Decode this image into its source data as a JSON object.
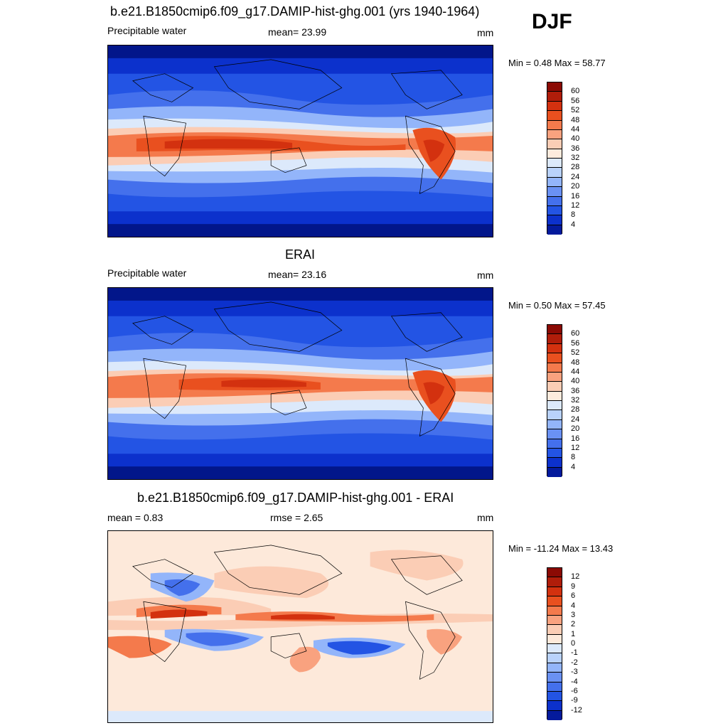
{
  "season": "DJF",
  "panels": [
    {
      "title": "b.e21.B1850cmip6.f09_g17.DAMIP-hist-ghg.001 (yrs 1940-1964)",
      "left_label": "Precipitable water",
      "center_label": "mean=  23.99",
      "units": "mm",
      "minmax": "Min =   0.48 Max =  58.77"
    },
    {
      "title": "ERAI",
      "left_label": "Precipitable water",
      "center_label": "mean=  23.16",
      "units": "mm",
      "minmax": "Min =   0.50 Max =  57.45"
    },
    {
      "title": "b.e21.B1850cmip6.f09_g17.DAMIP-hist-ghg.001 - ERAI",
      "left_label": "mean =   0.83",
      "center_label": "rmse =   2.65",
      "units": "mm",
      "minmax": "Min = -11.24 Max =  13.43"
    }
  ],
  "colorbar_abs": {
    "ticks": [
      "60",
      "56",
      "52",
      "48",
      "44",
      "40",
      "36",
      "32",
      "28",
      "24",
      "20",
      "16",
      "12",
      "8",
      "4"
    ],
    "colors": [
      "#8b0a04",
      "#b01d0a",
      "#d3310f",
      "#e9501f",
      "#f47a4c",
      "#f9a27f",
      "#fbcdb5",
      "#fdebdd",
      "#dce9fb",
      "#b9d2fb",
      "#93b5fa",
      "#6a91f3",
      "#4470ec",
      "#2354e4",
      "#0c31cc",
      "#041a9c"
    ]
  },
  "colorbar_diff": {
    "ticks": [
      "12",
      "9",
      "6",
      "4",
      "3",
      "2",
      "1",
      "0",
      "-1",
      "-2",
      "-3",
      "-4",
      "-6",
      "-9",
      "-12"
    ],
    "colors": [
      "#8b0a04",
      "#b01d0a",
      "#d3310f",
      "#e9501f",
      "#f47a4c",
      "#f9a27f",
      "#fbcdb5",
      "#fde9da",
      "#dce9fb",
      "#b9d2fb",
      "#93b5fa",
      "#6a91f3",
      "#4470ec",
      "#2354e4",
      "#0c31cc",
      "#041a9c"
    ]
  }
}
